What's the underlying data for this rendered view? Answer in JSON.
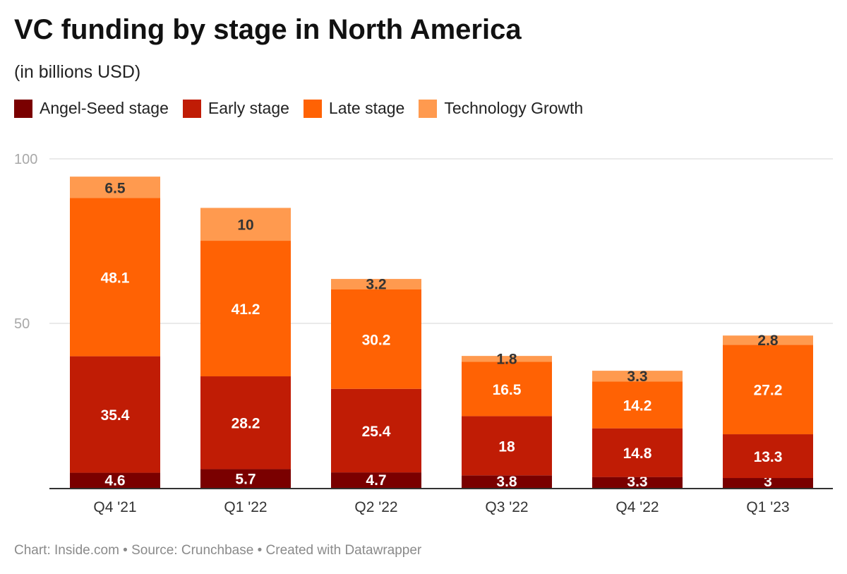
{
  "title": "VC funding by stage in North America",
  "subtitle": "(in billions USD)",
  "footer": "Chart: Inside.com • Source: Crunchbase • Created with Datawrapper",
  "chart_data": {
    "type": "bar",
    "stacked": true,
    "categories": [
      "Q4 '21",
      "Q1 '22",
      "Q2 '22",
      "Q3 '22",
      "Q4 '22",
      "Q1 '23"
    ],
    "series": [
      {
        "name": "Angel-Seed stage",
        "color": "#7a0000",
        "values": [
          4.6,
          5.7,
          4.7,
          3.8,
          3.3,
          3
        ]
      },
      {
        "name": "Early stage",
        "color": "#c01c05",
        "values": [
          35.4,
          28.2,
          25.4,
          18,
          14.8,
          13.3
        ]
      },
      {
        "name": "Late stage",
        "color": "#ff6204",
        "values": [
          48.1,
          41.2,
          30.2,
          16.5,
          14.2,
          27.2
        ]
      },
      {
        "name": "Technology Growth",
        "color": "#ff9a4f",
        "values": [
          6.5,
          10,
          3.2,
          1.8,
          3.3,
          2.8
        ]
      }
    ],
    "yticks": [
      50,
      100
    ],
    "ylim": [
      0,
      100
    ],
    "grid": true,
    "legend_position": "top-left"
  }
}
